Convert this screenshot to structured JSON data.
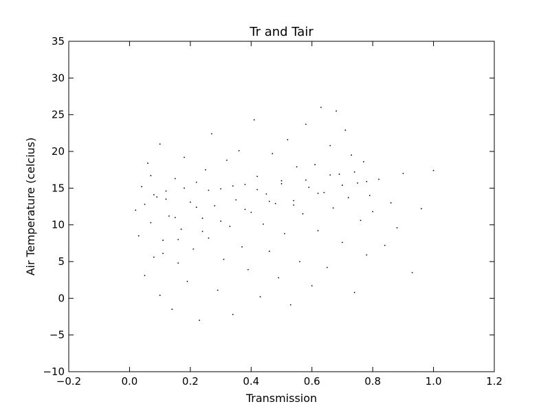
{
  "chart_data": {
    "type": "scatter",
    "title": "Tr and Tair",
    "xlabel": "Transmission",
    "ylabel": "Air Temperature (celcius)",
    "xlim": [
      -0.2,
      1.2
    ],
    "ylim": [
      -10,
      35
    ],
    "xticks": [
      -0.2,
      0.0,
      0.2,
      0.4,
      0.6,
      0.8,
      1.0,
      1.2
    ],
    "xtick_labels": [
      "−0.2",
      "0.0",
      "0.2",
      "0.4",
      "0.6",
      "0.8",
      "1.0",
      "1.2"
    ],
    "yticks": [
      -10,
      -5,
      0,
      5,
      10,
      15,
      20,
      25,
      30,
      35
    ],
    "ytick_labels": [
      "−10",
      "−5",
      "0",
      "5",
      "10",
      "15",
      "20",
      "25",
      "30",
      "35"
    ],
    "grid": false,
    "legend": "none",
    "marker_color": "#000000",
    "series": [
      {
        "values": [
          [
            0.02,
            12.0
          ],
          [
            0.03,
            8.5
          ],
          [
            0.04,
            15.2
          ],
          [
            0.05,
            3.1
          ],
          [
            0.06,
            18.4
          ],
          [
            0.07,
            10.3
          ],
          [
            0.08,
            5.6
          ],
          [
            0.09,
            13.8
          ],
          [
            0.1,
            0.4
          ],
          [
            0.1,
            21.0
          ],
          [
            0.11,
            7.9
          ],
          [
            0.12,
            14.6
          ],
          [
            0.13,
            11.2
          ],
          [
            0.14,
            -1.5
          ],
          [
            0.15,
            16.3
          ],
          [
            0.16,
            4.8
          ],
          [
            0.17,
            9.4
          ],
          [
            0.18,
            19.2
          ],
          [
            0.19,
            2.3
          ],
          [
            0.2,
            13.1
          ],
          [
            0.21,
            6.7
          ],
          [
            0.22,
            15.8
          ],
          [
            0.23,
            -3.0
          ],
          [
            0.24,
            10.9
          ],
          [
            0.25,
            17.5
          ],
          [
            0.26,
            8.2
          ],
          [
            0.27,
            22.4
          ],
          [
            0.28,
            12.6
          ],
          [
            0.29,
            1.1
          ],
          [
            0.3,
            14.9
          ],
          [
            0.31,
            5.3
          ],
          [
            0.32,
            18.8
          ],
          [
            0.33,
            9.8
          ],
          [
            0.34,
            -2.2
          ],
          [
            0.35,
            13.4
          ],
          [
            0.36,
            20.1
          ],
          [
            0.37,
            7.0
          ],
          [
            0.38,
            15.5
          ],
          [
            0.39,
            3.9
          ],
          [
            0.4,
            11.7
          ],
          [
            0.41,
            24.3
          ],
          [
            0.42,
            16.6
          ],
          [
            0.43,
            0.2
          ],
          [
            0.44,
            10.1
          ],
          [
            0.45,
            14.2
          ],
          [
            0.46,
            6.4
          ],
          [
            0.47,
            19.7
          ],
          [
            0.48,
            12.9
          ],
          [
            0.49,
            2.8
          ],
          [
            0.5,
            16.0
          ],
          [
            0.51,
            8.8
          ],
          [
            0.52,
            21.6
          ],
          [
            0.53,
            -0.9
          ],
          [
            0.54,
            13.3
          ],
          [
            0.55,
            17.9
          ],
          [
            0.56,
            5.0
          ],
          [
            0.57,
            11.5
          ],
          [
            0.58,
            23.7
          ],
          [
            0.59,
            15.1
          ],
          [
            0.6,
            1.7
          ],
          [
            0.61,
            18.2
          ],
          [
            0.62,
            9.2
          ],
          [
            0.63,
            26.0
          ],
          [
            0.64,
            14.4
          ],
          [
            0.65,
            4.2
          ],
          [
            0.66,
            20.8
          ],
          [
            0.67,
            12.3
          ],
          [
            0.68,
            25.5
          ],
          [
            0.69,
            16.9
          ],
          [
            0.7,
            7.6
          ],
          [
            0.71,
            22.9
          ],
          [
            0.72,
            13.7
          ],
          [
            0.73,
            19.5
          ],
          [
            0.74,
            0.8
          ],
          [
            0.75,
            15.7
          ],
          [
            0.76,
            10.6
          ],
          [
            0.77,
            18.6
          ],
          [
            0.78,
            5.9
          ],
          [
            0.79,
            14.0
          ],
          [
            0.8,
            11.8
          ],
          [
            0.82,
            16.2
          ],
          [
            0.84,
            7.2
          ],
          [
            0.86,
            13.0
          ],
          [
            0.88,
            9.6
          ],
          [
            0.9,
            17.0
          ],
          [
            0.93,
            3.5
          ],
          [
            0.96,
            12.2
          ],
          [
            1.0,
            17.4
          ],
          [
            0.05,
            12.8
          ],
          [
            0.08,
            14.1
          ],
          [
            0.12,
            13.5
          ],
          [
            0.15,
            11.0
          ],
          [
            0.18,
            15.0
          ],
          [
            0.22,
            12.4
          ],
          [
            0.26,
            14.7
          ],
          [
            0.3,
            10.5
          ],
          [
            0.34,
            15.3
          ],
          [
            0.38,
            12.1
          ],
          [
            0.42,
            14.8
          ],
          [
            0.46,
            13.2
          ],
          [
            0.5,
            15.6
          ],
          [
            0.54,
            12.7
          ],
          [
            0.58,
            16.1
          ],
          [
            0.62,
            14.3
          ],
          [
            0.66,
            16.8
          ],
          [
            0.7,
            15.4
          ],
          [
            0.74,
            17.2
          ],
          [
            0.78,
            15.9
          ],
          [
            0.07,
            16.7
          ],
          [
            0.11,
            6.1
          ],
          [
            0.16,
            8.0
          ],
          [
            0.24,
            9.1
          ]
        ]
      }
    ]
  }
}
